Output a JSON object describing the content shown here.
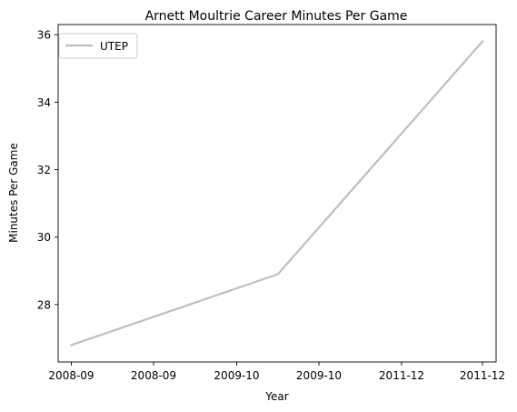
{
  "chart_data": {
    "type": "line",
    "title": "Arnett Moultrie Career Minutes Per Game",
    "xlabel": "Year",
    "ylabel": "Minutes Per Game",
    "x_tick_labels": [
      "2008-09",
      "2008-09",
      "2009-10",
      "2009-10",
      "2011-12",
      "2011-12"
    ],
    "ylim": [
      26.3,
      36.3
    ],
    "y_ticks": [
      28,
      30,
      32,
      34,
      36
    ],
    "grid": false,
    "legend_position": "top-left",
    "series": [
      {
        "name": "UTEP",
        "color": "#bfbfbf",
        "points": [
          {
            "x": "2008-09",
            "y": 26.8
          },
          {
            "x": "2009-10",
            "y": 28.9
          },
          {
            "x": "2011-12",
            "y": 35.8
          }
        ]
      }
    ]
  }
}
